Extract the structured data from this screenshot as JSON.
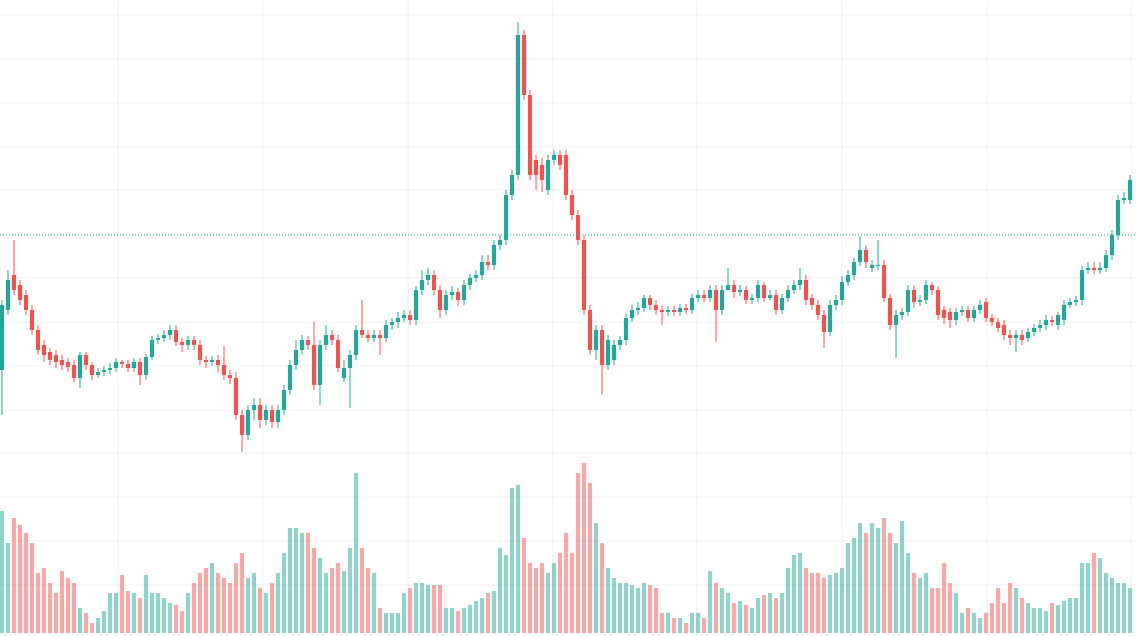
{
  "chart_data": {
    "type": "candlestick",
    "up_color": "#26a69a",
    "down_color": "#ef5350",
    "grid": true,
    "xlim": [
      -0.33,
      189
    ],
    "ylim": [
      0,
      636
    ],
    "vlim": [
      0,
      200
    ],
    "yticks": [
      621,
      577,
      533,
      489,
      446,
      402,
      358,
      314,
      270,
      226,
      183,
      139,
      95,
      51
    ],
    "xticks": [
      19.3,
      43.5,
      67.7,
      91.8,
      115.8,
      140,
      164.2,
      188.2
    ],
    "price_line": 401,
    "candles": [
      [
        266,
        336,
        221,
        331
      ],
      [
        326,
        366,
        321,
        356
      ],
      [
        361,
        396,
        341,
        346
      ],
      [
        351,
        356,
        331,
        336
      ],
      [
        341,
        346,
        321,
        326
      ],
      [
        326,
        331,
        301,
        306
      ],
      [
        306,
        311,
        281,
        286
      ],
      [
        291,
        296,
        274,
        281
      ],
      [
        284,
        288,
        271,
        276
      ],
      [
        281,
        286,
        268,
        274
      ],
      [
        276,
        281,
        266,
        271
      ],
      [
        274,
        278,
        264,
        269
      ],
      [
        271,
        276,
        254,
        258
      ],
      [
        258,
        284,
        248,
        281
      ],
      [
        281,
        284,
        266,
        271
      ],
      [
        271,
        274,
        256,
        261
      ],
      [
        261,
        268,
        258,
        264
      ],
      [
        264,
        270,
        260,
        266
      ],
      [
        266,
        273,
        262,
        268
      ],
      [
        268,
        278,
        264,
        274
      ],
      [
        274,
        276,
        268,
        272
      ],
      [
        272,
        276,
        264,
        268
      ],
      [
        268,
        278,
        264,
        274
      ],
      [
        274,
        278,
        251,
        261
      ],
      [
        261,
        282,
        256,
        279
      ],
      [
        279,
        300,
        276,
        296
      ],
      [
        296,
        302,
        292,
        298
      ],
      [
        298,
        306,
        294,
        301
      ],
      [
        301,
        311,
        296,
        306
      ],
      [
        306,
        311,
        290,
        294
      ],
      [
        294,
        298,
        284,
        291
      ],
      [
        291,
        300,
        286,
        296
      ],
      [
        296,
        300,
        286,
        291
      ],
      [
        291,
        296,
        271,
        276
      ],
      [
        276,
        280,
        268,
        274
      ],
      [
        274,
        280,
        270,
        276
      ],
      [
        276,
        281,
        264,
        271
      ],
      [
        271,
        290,
        256,
        261
      ],
      [
        261,
        266,
        252,
        258
      ],
      [
        258,
        264,
        216,
        221
      ],
      [
        221,
        226,
        184,
        201
      ],
      [
        201,
        231,
        196,
        226
      ],
      [
        226,
        238,
        216,
        231
      ],
      [
        231,
        238,
        208,
        216
      ],
      [
        216,
        231,
        211,
        226
      ],
      [
        226,
        231,
        208,
        214
      ],
      [
        214,
        231,
        208,
        226
      ],
      [
        226,
        251,
        221,
        246
      ],
      [
        246,
        276,
        241,
        271
      ],
      [
        271,
        296,
        266,
        286
      ],
      [
        286,
        301,
        281,
        296
      ],
      [
        296,
        300,
        286,
        291
      ],
      [
        291,
        314,
        246,
        251
      ],
      [
        251,
        296,
        231,
        291
      ],
      [
        291,
        311,
        286,
        301
      ],
      [
        301,
        306,
        291,
        296
      ],
      [
        296,
        301,
        264,
        268
      ],
      [
        258,
        276,
        254,
        268
      ],
      [
        268,
        286,
        228,
        281
      ],
      [
        281,
        311,
        276,
        306
      ],
      [
        306,
        336,
        298,
        301
      ],
      [
        301,
        306,
        294,
        298
      ],
      [
        298,
        306,
        294,
        301
      ],
      [
        301,
        306,
        281,
        298
      ],
      [
        298,
        316,
        294,
        311
      ],
      [
        311,
        318,
        306,
        314
      ],
      [
        314,
        324,
        308,
        318
      ],
      [
        318,
        326,
        314,
        321
      ],
      [
        321,
        326,
        311,
        316
      ],
      [
        316,
        350,
        311,
        346
      ],
      [
        346,
        366,
        341,
        356
      ],
      [
        356,
        368,
        351,
        361
      ],
      [
        361,
        366,
        341,
        346
      ],
      [
        346,
        351,
        318,
        326
      ],
      [
        326,
        346,
        321,
        341
      ],
      [
        341,
        350,
        336,
        344
      ],
      [
        344,
        348,
        330,
        336
      ],
      [
        336,
        356,
        331,
        351
      ],
      [
        351,
        362,
        346,
        358
      ],
      [
        358,
        366,
        354,
        361
      ],
      [
        361,
        381,
        356,
        374
      ],
      [
        374,
        381,
        366,
        371
      ],
      [
        371,
        396,
        366,
        391
      ],
      [
        391,
        401,
        386,
        396
      ],
      [
        396,
        446,
        391,
        441
      ],
      [
        441,
        466,
        436,
        461
      ],
      [
        461,
        614,
        456,
        601
      ],
      [
        601,
        606,
        536,
        541
      ],
      [
        541,
        546,
        456,
        461
      ],
      [
        476,
        481,
        446,
        461
      ],
      [
        471,
        478,
        444,
        456
      ],
      [
        446,
        481,
        441,
        476
      ],
      [
        476,
        486,
        471,
        481
      ],
      [
        481,
        486,
        466,
        471
      ],
      [
        481,
        486,
        436,
        441
      ],
      [
        441,
        446,
        416,
        421
      ],
      [
        421,
        426,
        391,
        396
      ],
      [
        396,
        401,
        321,
        326
      ],
      [
        326,
        331,
        281,
        286
      ],
      [
        286,
        311,
        276,
        306
      ],
      [
        306,
        311,
        241,
        271
      ],
      [
        271,
        301,
        266,
        296
      ],
      [
        276,
        296,
        271,
        291
      ],
      [
        291,
        300,
        286,
        296
      ],
      [
        296,
        322,
        291,
        318
      ],
      [
        318,
        331,
        314,
        326
      ],
      [
        326,
        334,
        321,
        328
      ],
      [
        328,
        341,
        324,
        338
      ],
      [
        338,
        341,
        326,
        331
      ],
      [
        331,
        336,
        321,
        326
      ],
      [
        326,
        330,
        311,
        324
      ],
      [
        324,
        330,
        320,
        326
      ],
      [
        326,
        330,
        320,
        324
      ],
      [
        324,
        332,
        320,
        328
      ],
      [
        328,
        332,
        322,
        326
      ],
      [
        326,
        342,
        322,
        338
      ],
      [
        338,
        346,
        334,
        341
      ],
      [
        341,
        346,
        334,
        338
      ],
      [
        338,
        351,
        334,
        346
      ],
      [
        346,
        351,
        294,
        326
      ],
      [
        326,
        351,
        321,
        346
      ],
      [
        346,
        368,
        346,
        351
      ],
      [
        351,
        356,
        338,
        344
      ],
      [
        344,
        351,
        340,
        346
      ],
      [
        346,
        350,
        332,
        336
      ],
      [
        336,
        342,
        332,
        338
      ],
      [
        338,
        356,
        334,
        351
      ],
      [
        351,
        354,
        334,
        338
      ],
      [
        338,
        346,
        336,
        341
      ],
      [
        341,
        346,
        321,
        326
      ],
      [
        326,
        342,
        322,
        338
      ],
      [
        338,
        351,
        334,
        346
      ],
      [
        346,
        356,
        342,
        351
      ],
      [
        351,
        368,
        346,
        356
      ],
      [
        356,
        361,
        331,
        336
      ],
      [
        338,
        342,
        326,
        331
      ],
      [
        331,
        336,
        316,
        321
      ],
      [
        321,
        326,
        288,
        304
      ],
      [
        304,
        336,
        300,
        331
      ],
      [
        331,
        341,
        326,
        336
      ],
      [
        336,
        360,
        331,
        354
      ],
      [
        354,
        366,
        350,
        361
      ],
      [
        361,
        378,
        356,
        374
      ],
      [
        374,
        400,
        370,
        386
      ],
      [
        386,
        391,
        368,
        374
      ],
      [
        368,
        376,
        364,
        371
      ],
      [
        371,
        396,
        366,
        371
      ],
      [
        371,
        376,
        334,
        338
      ],
      [
        338,
        342,
        306,
        311
      ],
      [
        311,
        326,
        278,
        321
      ],
      [
        321,
        328,
        316,
        324
      ],
      [
        324,
        351,
        320,
        346
      ],
      [
        346,
        351,
        328,
        334
      ],
      [
        334,
        341,
        330,
        336
      ],
      [
        336,
        356,
        332,
        351
      ],
      [
        351,
        354,
        341,
        346
      ],
      [
        346,
        350,
        316,
        321
      ],
      [
        326,
        330,
        312,
        318
      ],
      [
        324,
        328,
        308,
        316
      ],
      [
        316,
        328,
        311,
        324
      ],
      [
        324,
        330,
        320,
        326
      ],
      [
        326,
        330,
        314,
        318
      ],
      [
        318,
        330,
        314,
        326
      ],
      [
        326,
        336,
        322,
        331
      ],
      [
        334,
        338,
        314,
        318
      ],
      [
        318,
        322,
        310,
        314
      ],
      [
        314,
        318,
        304,
        308
      ],
      [
        311,
        316,
        296,
        301
      ],
      [
        301,
        306,
        291,
        298
      ],
      [
        298,
        306,
        284,
        301
      ],
      [
        301,
        306,
        291,
        296
      ],
      [
        298,
        308,
        294,
        304
      ],
      [
        304,
        312,
        300,
        308
      ],
      [
        308,
        316,
        304,
        311
      ],
      [
        311,
        321,
        306,
        316
      ],
      [
        316,
        320,
        310,
        314
      ],
      [
        311,
        324,
        306,
        321
      ],
      [
        316,
        336,
        311,
        331
      ],
      [
        331,
        338,
        328,
        334
      ],
      [
        334,
        340,
        330,
        336
      ],
      [
        336,
        370,
        331,
        366
      ],
      [
        366,
        374,
        362,
        368
      ],
      [
        368,
        374,
        362,
        366
      ],
      [
        366,
        374,
        362,
        368
      ],
      [
        368,
        386,
        364,
        381
      ],
      [
        381,
        406,
        376,
        401
      ],
      [
        401,
        441,
        396,
        436
      ],
      [
        436,
        444,
        432,
        438
      ],
      [
        436,
        461,
        432,
        456
      ]
    ],
    "volume": [
      122,
      90,
      115,
      108,
      100,
      90,
      60,
      65,
      50,
      40,
      62,
      55,
      50,
      25,
      20,
      10,
      15,
      22,
      40,
      40,
      58,
      42,
      40,
      35,
      58,
      40,
      40,
      35,
      30,
      28,
      22,
      40,
      50,
      60,
      65,
      70,
      60,
      55,
      50,
      70,
      80,
      55,
      60,
      45,
      40,
      50,
      60,
      80,
      105,
      105,
      100,
      100,
      85,
      75,
      60,
      65,
      70,
      62,
      85,
      160,
      85,
      65,
      60,
      25,
      20,
      20,
      20,
      40,
      45,
      50,
      50,
      48,
      48,
      48,
      25,
      25,
      22,
      25,
      28,
      32,
      35,
      40,
      42,
      85,
      78,
      145,
      148,
      95,
      70,
      65,
      70,
      60,
      70,
      80,
      100,
      80,
      160,
      170,
      150,
      110,
      90,
      65,
      55,
      50,
      50,
      48,
      45,
      50,
      48,
      45,
      20,
      20,
      15,
      15,
      10,
      20,
      20,
      15,
      62,
      50,
      45,
      40,
      30,
      32,
      28,
      25,
      35,
      38,
      40,
      35,
      40,
      65,
      78,
      80,
      65,
      60,
      60,
      55,
      58,
      60,
      65,
      90,
      95,
      110,
      100,
      110,
      105,
      115,
      100,
      90,
      112,
      80,
      60,
      55,
      60,
      45,
      45,
      70,
      50,
      40,
      20,
      25,
      20,
      15,
      20,
      30,
      45,
      30,
      50,
      45,
      35,
      30,
      25,
      25,
      22,
      30,
      28,
      32,
      35,
      35,
      70,
      70,
      80,
      75,
      60,
      55,
      50,
      50,
      45
    ]
  }
}
